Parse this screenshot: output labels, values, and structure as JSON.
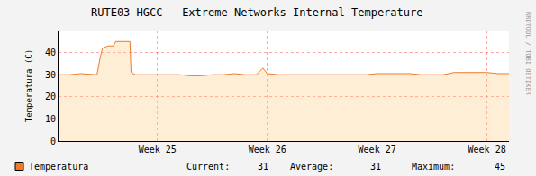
{
  "chart_data": {
    "type": "area",
    "title": "RUTE03-HGCC - Extreme Networks Internal Temperature",
    "y_label": "Temperatura (C)",
    "side_text": "RRDTOOL / TOBI OETIKER",
    "x": [
      24.1,
      24.2,
      24.3,
      24.4,
      24.45,
      24.48,
      24.5,
      24.55,
      24.6,
      24.62,
      24.7,
      24.75,
      24.76,
      24.8,
      24.9,
      25.0,
      25.1,
      25.2,
      25.3,
      25.4,
      25.5,
      25.6,
      25.7,
      25.8,
      25.9,
      25.96,
      26.0,
      26.1,
      26.2,
      26.3,
      26.4,
      26.5,
      26.6,
      26.7,
      26.8,
      26.9,
      27.0,
      27.1,
      27.2,
      27.3,
      27.4,
      27.5,
      27.6,
      27.7,
      27.8,
      27.9,
      28.0,
      28.1,
      28.2
    ],
    "series": [
      {
        "name": "Temperatura",
        "color": "#ec7c2b",
        "values": [
          30,
          30,
          30.5,
          30,
          30,
          38,
          42,
          43,
          43,
          45,
          45,
          45,
          31,
          30,
          30,
          30,
          30,
          30,
          29.5,
          29.5,
          30,
          30,
          30.5,
          30,
          30,
          33,
          30.5,
          30,
          30,
          30,
          30,
          30,
          30,
          30,
          30,
          30,
          30.5,
          30.5,
          30.5,
          30.5,
          30,
          30,
          30,
          31,
          31,
          31,
          31,
          30.5,
          30.5
        ],
        "stats": [
          {
            "label": "Current:",
            "value": 31
          },
          {
            "label": "Average:",
            "value": 31
          },
          {
            "label": "Maximum:",
            "value": 45
          }
        ]
      }
    ],
    "xlim": [
      24.1,
      28.2
    ],
    "xticks": [
      {
        "value": 25,
        "label": "Week 25"
      },
      {
        "value": 26,
        "label": "Week 26"
      },
      {
        "value": 27,
        "label": "Week 27"
      },
      {
        "value": 28,
        "label": "Week 28"
      }
    ],
    "ylim": [
      0,
      50
    ],
    "yticks": [
      0,
      10,
      20,
      30,
      40
    ],
    "grid": true
  }
}
